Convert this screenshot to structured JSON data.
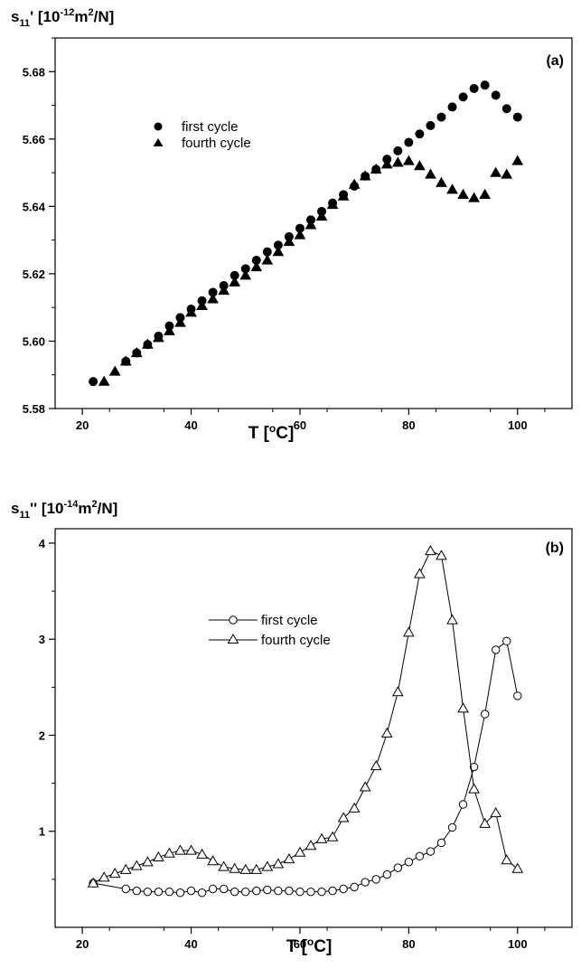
{
  "chart_data": [
    {
      "type": "scatter",
      "panel_label": "(a)",
      "ylabel": {
        "main": "s",
        "sub": "11",
        "prime": "' [10",
        "exp": "-12",
        "unit1": "m",
        "unit_exp": "2",
        "unit2": "/N]"
      },
      "xlabel": {
        "main": "T [",
        "sup": "o",
        "tail": "C]"
      },
      "xlim": [
        15,
        110
      ],
      "ylim": [
        5.58,
        5.69
      ],
      "xticks": [
        "20",
        "40",
        "60",
        "80",
        "100"
      ],
      "yticks": [
        "5.58",
        "5.60",
        "5.62",
        "5.64",
        "5.66",
        "5.68"
      ],
      "legend_position": "upper-left",
      "series": [
        {
          "name": "first cycle",
          "marker": "filled-circle",
          "x": [
            22,
            28,
            30,
            32,
            34,
            36,
            38,
            40,
            42,
            44,
            46,
            48,
            50,
            52,
            54,
            56,
            58,
            60,
            62,
            64,
            66,
            68,
            70,
            72,
            74,
            76,
            78,
            80,
            82,
            84,
            86,
            88,
            90,
            92,
            94,
            96,
            98,
            100
          ],
          "y": [
            5.588,
            5.594,
            5.5965,
            5.599,
            5.6015,
            5.6045,
            5.607,
            5.6095,
            5.612,
            5.6145,
            5.6165,
            5.6195,
            5.6215,
            5.624,
            5.6265,
            5.6285,
            5.631,
            5.6335,
            5.636,
            5.6385,
            5.641,
            5.6435,
            5.646,
            5.649,
            5.651,
            5.654,
            5.6565,
            5.659,
            5.6615,
            5.664,
            5.6665,
            5.6695,
            5.6725,
            5.675,
            5.676,
            5.673,
            5.669,
            5.6665
          ]
        },
        {
          "name": "fourth cycle",
          "marker": "filled-triangle",
          "x": [
            24,
            26,
            28,
            30,
            32,
            34,
            36,
            38,
            40,
            42,
            44,
            46,
            48,
            50,
            52,
            54,
            56,
            58,
            60,
            62,
            64,
            66,
            68,
            70,
            72,
            74,
            76,
            78,
            80,
            82,
            84,
            86,
            88,
            90,
            92,
            94,
            96,
            98,
            100
          ],
          "y": [
            5.588,
            5.591,
            5.594,
            5.5965,
            5.599,
            5.601,
            5.603,
            5.6055,
            5.6085,
            5.6105,
            5.6125,
            5.615,
            5.6175,
            5.6195,
            5.622,
            5.624,
            5.6265,
            5.6295,
            5.6315,
            5.6345,
            5.637,
            5.6405,
            5.643,
            5.6465,
            5.649,
            5.651,
            5.6525,
            5.653,
            5.6535,
            5.652,
            5.6495,
            5.647,
            5.645,
            5.6435,
            5.6425,
            5.6435,
            5.65,
            5.6495,
            5.6535
          ]
        }
      ]
    },
    {
      "type": "line",
      "panel_label": "(b)",
      "ylabel": {
        "main": "s",
        "sub": "11",
        "prime": "'' [10",
        "exp": "-14",
        "unit1": "m",
        "unit_exp": "2",
        "unit2": "/N]"
      },
      "xlabel": {
        "main": "T [",
        "sup": "o",
        "tail": "C]"
      },
      "xlim": [
        15,
        110
      ],
      "ylim": [
        0,
        4.15
      ],
      "xticks": [
        "20",
        "40",
        "60",
        "80",
        "100"
      ],
      "yticks": [
        "1",
        "2",
        "3",
        "4"
      ],
      "legend_position": "upper-left",
      "series": [
        {
          "name": "first cycle",
          "marker": "open-circle",
          "x": [
            22,
            28,
            30,
            32,
            34,
            36,
            38,
            40,
            42,
            44,
            46,
            48,
            50,
            52,
            54,
            56,
            58,
            60,
            62,
            64,
            66,
            68,
            70,
            72,
            74,
            76,
            78,
            80,
            82,
            84,
            86,
            88,
            90,
            92,
            94,
            96,
            98,
            100
          ],
          "y": [
            0.46,
            0.4,
            0.38,
            0.37,
            0.37,
            0.37,
            0.36,
            0.38,
            0.36,
            0.4,
            0.4,
            0.37,
            0.37,
            0.38,
            0.39,
            0.38,
            0.38,
            0.37,
            0.37,
            0.37,
            0.38,
            0.4,
            0.42,
            0.47,
            0.5,
            0.55,
            0.62,
            0.68,
            0.74,
            0.79,
            0.88,
            1.04,
            1.28,
            1.67,
            2.22,
            2.89,
            2.98,
            2.41
          ]
        },
        {
          "name": "fourth cycle",
          "marker": "open-triangle",
          "x": [
            22,
            24,
            26,
            28,
            30,
            32,
            34,
            36,
            38,
            40,
            42,
            44,
            46,
            48,
            50,
            52,
            54,
            56,
            58,
            60,
            62,
            64,
            66,
            68,
            70,
            72,
            74,
            76,
            78,
            80,
            82,
            84,
            86,
            88,
            90,
            92,
            94,
            96,
            98,
            100
          ],
          "y": [
            0.46,
            0.52,
            0.56,
            0.6,
            0.64,
            0.68,
            0.73,
            0.77,
            0.8,
            0.8,
            0.76,
            0.69,
            0.63,
            0.61,
            0.6,
            0.6,
            0.63,
            0.66,
            0.71,
            0.78,
            0.85,
            0.92,
            0.94,
            1.14,
            1.24,
            1.46,
            1.68,
            2.02,
            2.45,
            3.07,
            3.68,
            3.92,
            3.87,
            3.2,
            2.28,
            1.44,
            1.08,
            1.19,
            0.7,
            0.61
          ]
        }
      ]
    }
  ]
}
